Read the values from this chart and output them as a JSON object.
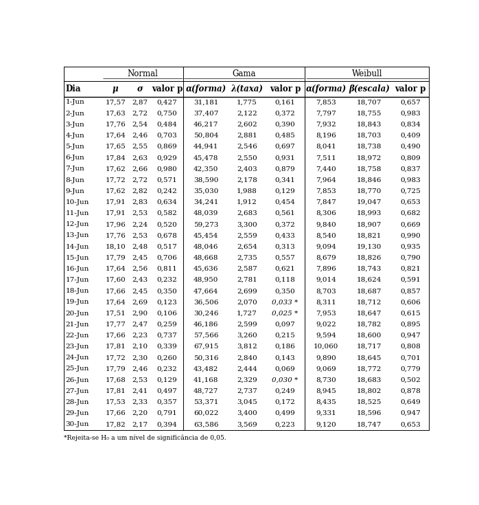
{
  "footnote": "*Rejeita-se H₀ a um nível de significância de 0,05.",
  "rows": [
    [
      "1-Jun",
      "17,57",
      "2,87",
      "0,427",
      "31,181",
      "1,775",
      "0,161",
      "7,853",
      "18,707",
      "0,657"
    ],
    [
      "2-Jun",
      "17,63",
      "2,72",
      "0,750",
      "37,407",
      "2,122",
      "0,372",
      "7,797",
      "18,755",
      "0,983"
    ],
    [
      "3-Jun",
      "17,76",
      "2,54",
      "0,484",
      "46,217",
      "2,602",
      "0,390",
      "7,932",
      "18,843",
      "0,834"
    ],
    [
      "4-Jun",
      "17,64",
      "2,46",
      "0,703",
      "50,804",
      "2,881",
      "0,485",
      "8,196",
      "18,703",
      "0,409"
    ],
    [
      "5-Jun",
      "17,65",
      "2,55",
      "0,869",
      "44,941",
      "2,546",
      "0,697",
      "8,041",
      "18,738",
      "0,490"
    ],
    [
      "6-Jun",
      "17,84",
      "2,63",
      "0,929",
      "45,478",
      "2,550",
      "0,931",
      "7,511",
      "18,972",
      "0,809"
    ],
    [
      "7-Jun",
      "17,62",
      "2,66",
      "0,980",
      "42,350",
      "2,403",
      "0,879",
      "7,440",
      "18,758",
      "0,837"
    ],
    [
      "8-Jun",
      "17,72",
      "2,72",
      "0,571",
      "38,590",
      "2,178",
      "0,341",
      "7,964",
      "18,846",
      "0,983"
    ],
    [
      "9-Jun",
      "17,62",
      "2,82",
      "0,242",
      "35,030",
      "1,988",
      "0,129",
      "7,853",
      "18,770",
      "0,725"
    ],
    [
      "10-Jun",
      "17,91",
      "2,83",
      "0,634",
      "34,241",
      "1,912",
      "0,454",
      "7,847",
      "19,047",
      "0,653"
    ],
    [
      "11-Jun",
      "17,91",
      "2,53",
      "0,582",
      "48,039",
      "2,683",
      "0,561",
      "8,306",
      "18,993",
      "0,682"
    ],
    [
      "12-Jun",
      "17,96",
      "2,24",
      "0,520",
      "59,273",
      "3,300",
      "0,372",
      "9,840",
      "18,907",
      "0,669"
    ],
    [
      "13-Jun",
      "17,76",
      "2,53",
      "0,678",
      "45,454",
      "2,559",
      "0,433",
      "8,540",
      "18,821",
      "0,990"
    ],
    [
      "14-Jun",
      "18,10",
      "2,48",
      "0,517",
      "48,046",
      "2,654",
      "0,313",
      "9,094",
      "19,130",
      "0,935"
    ],
    [
      "15-Jun",
      "17,79",
      "2,45",
      "0,706",
      "48,668",
      "2,735",
      "0,557",
      "8,679",
      "18,826",
      "0,790"
    ],
    [
      "16-Jun",
      "17,64",
      "2,56",
      "0,811",
      "45,636",
      "2,587",
      "0,621",
      "7,896",
      "18,743",
      "0,821"
    ],
    [
      "17-Jun",
      "17,60",
      "2,43",
      "0,232",
      "48,950",
      "2,781",
      "0,118",
      "9,014",
      "18,624",
      "0,591"
    ],
    [
      "18-Jun",
      "17,66",
      "2,45",
      "0,350",
      "47,664",
      "2,699",
      "0,350",
      "8,703",
      "18,687",
      "0,857"
    ],
    [
      "19-Jun",
      "17,64",
      "2,69",
      "0,123",
      "36,506",
      "2,070",
      "0,033 *",
      "8,311",
      "18,712",
      "0,606"
    ],
    [
      "20-Jun",
      "17,51",
      "2,90",
      "0,106",
      "30,246",
      "1,727",
      "0,025 *",
      "7,953",
      "18,647",
      "0,615"
    ],
    [
      "21-Jun",
      "17,77",
      "2,47",
      "0,259",
      "46,186",
      "2,599",
      "0,097",
      "9,022",
      "18,782",
      "0,895"
    ],
    [
      "22-Jun",
      "17,66",
      "2,23",
      "0,737",
      "57,566",
      "3,260",
      "0,215",
      "9,594",
      "18,600",
      "0,947"
    ],
    [
      "23-Jun",
      "17,81",
      "2,10",
      "0,339",
      "67,915",
      "3,812",
      "0,186",
      "10,060",
      "18,717",
      "0,808"
    ],
    [
      "24-Jun",
      "17,72",
      "2,30",
      "0,260",
      "50,316",
      "2,840",
      "0,143",
      "9,890",
      "18,645",
      "0,701"
    ],
    [
      "25-Jun",
      "17,79",
      "2,46",
      "0,232",
      "43,482",
      "2,444",
      "0,069",
      "9,069",
      "18,772",
      "0,779"
    ],
    [
      "26-Jun",
      "17,68",
      "2,53",
      "0,129",
      "41,168",
      "2,329",
      "0,030 *",
      "8,730",
      "18,683",
      "0,502"
    ],
    [
      "27-Jun",
      "17,81",
      "2,41",
      "0,497",
      "48,727",
      "2,737",
      "0,249",
      "8,945",
      "18,802",
      "0,878"
    ],
    [
      "28-Jun",
      "17,53",
      "2,33",
      "0,357",
      "53,371",
      "3,045",
      "0,172",
      "8,435",
      "18,525",
      "0,649"
    ],
    [
      "29-Jun",
      "17,66",
      "2,20",
      "0,791",
      "60,022",
      "3,400",
      "0,499",
      "9,331",
      "18,596",
      "0,947"
    ],
    [
      "30-Jun",
      "17,82",
      "2,17",
      "0,394",
      "63,586",
      "3,569",
      "0,223",
      "9,120",
      "18,747",
      "0,653"
    ]
  ],
  "background_color": "#ffffff",
  "line_color": "#000000",
  "font_size": 7.5,
  "header_font_size": 8.5,
  "fig_width": 6.98,
  "fig_height": 7.35,
  "dpi": 100
}
